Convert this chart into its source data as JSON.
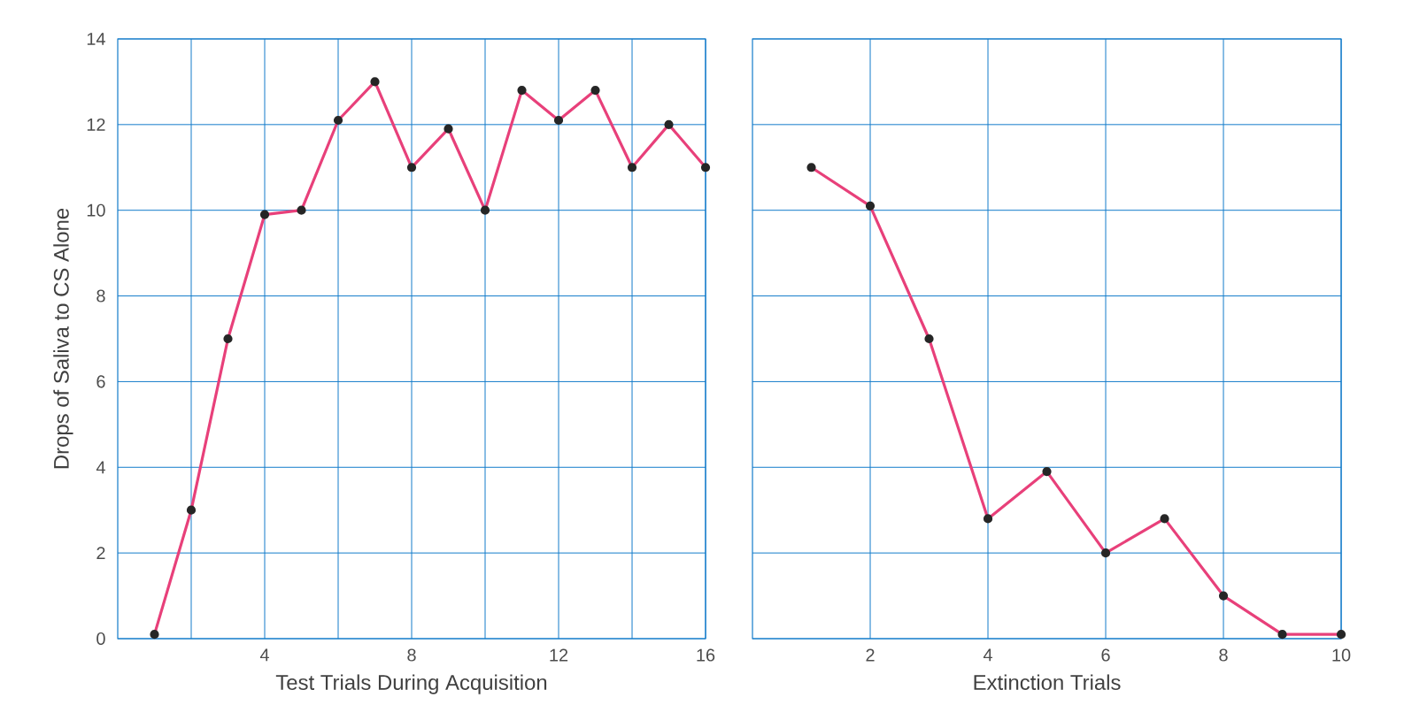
{
  "chart_data": [
    {
      "type": "line",
      "xlabel": "Test Trials During Acquisition",
      "ylabel": "Drops of Saliva to CS Alone",
      "x": [
        1,
        2,
        3,
        4,
        5,
        6,
        7,
        8,
        9,
        10,
        11,
        12,
        13,
        14,
        15,
        16
      ],
      "series": [
        {
          "color": "#e8407a",
          "values": [
            0.1,
            3,
            7,
            9.9,
            10,
            12.1,
            13,
            11,
            11.9,
            10,
            12.8,
            12.1,
            12.8,
            11,
            12,
            11
          ]
        }
      ],
      "xlim": [
        0,
        16
      ],
      "ylim": [
        0,
        14
      ],
      "xticks": [
        {
          "value": 2,
          "label": null
        },
        4,
        {
          "value": 6,
          "label": null
        },
        8,
        {
          "value": 10,
          "label": null
        },
        12,
        {
          "value": 14,
          "label": null
        },
        16
      ],
      "yticks": [
        0,
        2,
        4,
        6,
        8,
        10,
        12,
        14
      ],
      "grid": true,
      "marker": "circle"
    },
    {
      "type": "line",
      "xlabel": "Extinction Trials",
      "x": [
        1,
        2,
        3,
        4,
        5,
        6,
        7,
        8,
        9,
        10
      ],
      "series": [
        {
          "color": "#e8407a",
          "values": [
            11,
            10.1,
            7,
            2.8,
            3.9,
            2,
            2.8,
            1,
            0.1,
            0.1
          ]
        }
      ],
      "xlim": [
        0,
        10
      ],
      "ylim": [
        0,
        14
      ],
      "xticks": [
        2,
        4,
        6,
        8,
        10
      ],
      "yticks": [
        0,
        2,
        4,
        6,
        8,
        10,
        12,
        14
      ],
      "tick_labels": "x",
      "grid": true,
      "marker": "circle"
    }
  ]
}
